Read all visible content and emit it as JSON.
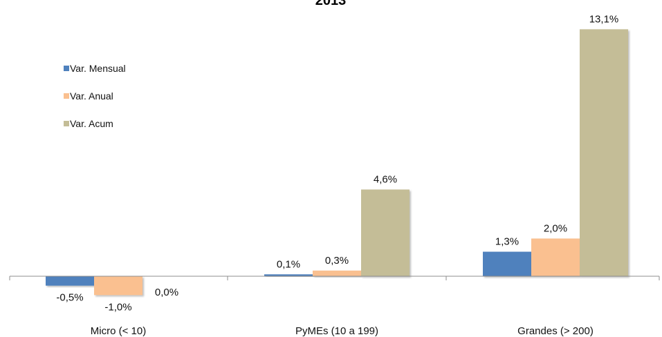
{
  "chart_data": {
    "type": "bar",
    "title": "2013",
    "xlabel": "",
    "ylabel": "",
    "ylim": [
      -1.5,
      14
    ],
    "grid": false,
    "legend_position": "top-left",
    "categories": [
      "Micro (< 10)",
      "PyMEs (10 a 199)",
      "Grandes (> 200)"
    ],
    "series": [
      {
        "name": "Var. Mensual",
        "color": "#4F81BD",
        "values": [
          -0.5,
          0.1,
          1.3
        ],
        "labels": [
          "-0,5%",
          "0,1%",
          "1,3%"
        ]
      },
      {
        "name": "Var. Anual",
        "color": "#FAC090",
        "values": [
          -1.0,
          0.3,
          2.0
        ],
        "labels": [
          "-1,0%",
          "0,3%",
          "2,0%"
        ]
      },
      {
        "name": "Var. Acum",
        "color": "#C4BD97",
        "values": [
          0.0,
          4.6,
          13.1
        ],
        "labels": [
          "0,0%",
          "4,6%",
          "13,1%"
        ]
      }
    ]
  }
}
